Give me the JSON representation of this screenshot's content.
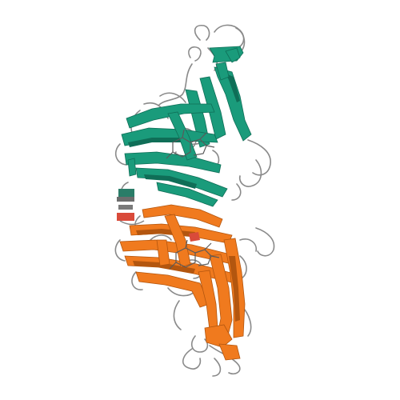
{
  "image": {
    "kind": "protein-ribbon-structure",
    "background_color": "#ffffff",
    "chains": [
      {
        "id": "A",
        "color": "#1a9b7b",
        "dark_color": "#0f6e57",
        "region": "upper"
      },
      {
        "id": "B",
        "color": "#f07a1e",
        "dark_color": "#b3560f",
        "region": "lower"
      }
    ],
    "loop_color": "#8a8a8a",
    "ligand_color": "#5a5a5a",
    "ligand_count": 2,
    "accent_red": "#d94a3a"
  }
}
